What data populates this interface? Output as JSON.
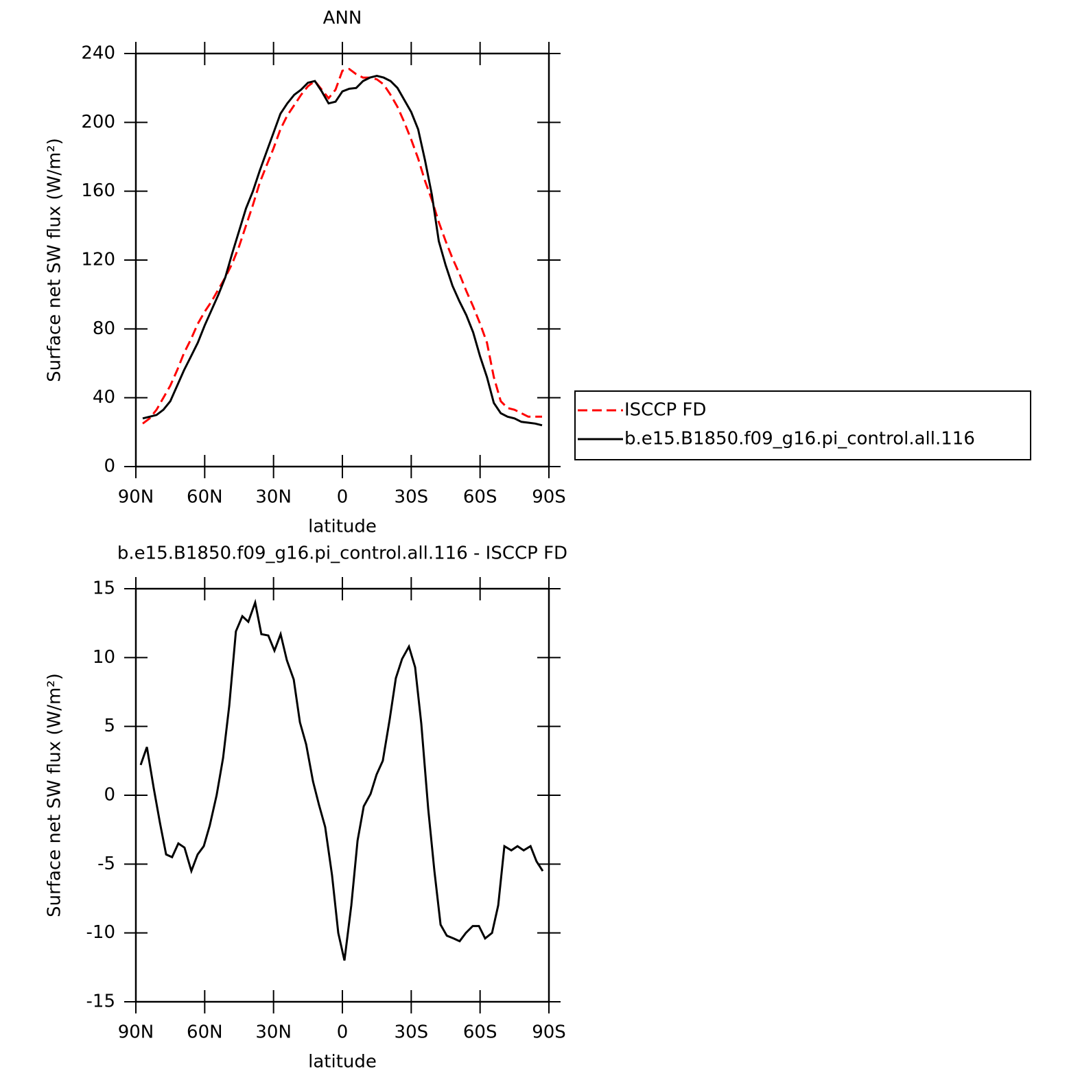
{
  "chart_data": [
    {
      "type": "line",
      "title": "ANN",
      "ylabel": "Surface net SW flux (W/m²)",
      "xlabel": "latitude",
      "x": [
        87,
        84,
        81,
        78,
        75,
        72,
        69,
        66,
        63,
        60,
        57,
        54,
        51,
        48,
        45,
        42,
        39,
        36,
        33,
        30,
        27,
        24,
        21,
        18,
        15,
        12,
        9,
        6,
        3,
        0,
        -3,
        -6,
        -9,
        -12,
        -15,
        -18,
        -21,
        -24,
        -27,
        -30,
        -33,
        -36,
        -39,
        -42,
        -45,
        -48,
        -51,
        -54,
        -57,
        -60,
        -63,
        -66,
        -69,
        -72,
        -75,
        -78,
        -81,
        -84,
        -87
      ],
      "series": [
        {
          "name": "ISCCP FD",
          "color": "#ff0000",
          "dash": true,
          "values": [
            25,
            28,
            33,
            40,
            47,
            56,
            66,
            74,
            83,
            90,
            96,
            103,
            110,
            118,
            128,
            140,
            152,
            165,
            175,
            185,
            196,
            204,
            210,
            216,
            221,
            224,
            219,
            214,
            219,
            230,
            231,
            228,
            226,
            226,
            225,
            222,
            216,
            209,
            200,
            190,
            179,
            166,
            155,
            142,
            131,
            121,
            112,
            102,
            93,
            83,
            72,
            52,
            38,
            34,
            33,
            31,
            29,
            29,
            29
          ]
        },
        {
          "name": "b.e15.B1850.f09_g16.pi_control.all.116",
          "color": "#000000",
          "dash": false,
          "values": [
            28,
            29,
            30,
            33,
            38,
            47,
            56,
            64,
            72,
            82,
            91,
            100,
            110,
            124,
            137,
            150,
            160,
            172,
            183,
            194,
            205,
            211,
            216,
            219,
            223,
            224,
            218,
            211,
            212,
            218,
            219.5,
            220,
            224,
            226,
            227,
            226,
            224,
            220,
            213,
            206,
            196,
            178,
            158,
            131,
            117,
            105,
            96,
            88,
            78,
            64,
            52,
            37,
            31,
            29,
            28,
            26,
            25.5,
            25,
            24
          ]
        }
      ],
      "xlim": [
        90,
        -90
      ],
      "xticks": [
        {
          "value": 90,
          "label": "90N"
        },
        {
          "value": 60,
          "label": "60N"
        },
        {
          "value": 30,
          "label": "30N"
        },
        0,
        {
          "value": -30,
          "label": "30S"
        },
        {
          "value": -60,
          "label": "60S"
        },
        {
          "value": -90,
          "label": "90S"
        }
      ],
      "ylim": [
        0,
        240
      ],
      "yticks": [
        0,
        40,
        80,
        120,
        160,
        200,
        240
      ],
      "legend": "right"
    },
    {
      "type": "line",
      "title": "b.e15.B1850.f09_g16.pi_control.all.116 - ISCCP FD",
      "ylabel": "Surface net SW flux (W/m²)",
      "xlabel": "latitude",
      "x": [
        87.9,
        85.2,
        82.2,
        79.5,
        76.8,
        74.2,
        71.5,
        68.8,
        65.8,
        63.1,
        60.4,
        57.8,
        54.8,
        52.0,
        49.3,
        46.4,
        43.6,
        41.0,
        38.0,
        35.3,
        32.3,
        29.6,
        26.9,
        24.2,
        21.2,
        18.5,
        15.8,
        12.8,
        10.2,
        7.5,
        4.5,
        1.8,
        -0.9,
        -3.9,
        -6.6,
        -9.3,
        -12.3,
        -14.9,
        -17.6,
        -20.6,
        -23.3,
        -26.0,
        -29.0,
        -31.7,
        -34.4,
        -37.4,
        -40.1,
        -42.8,
        -45.5,
        -48.5,
        -51.1,
        -53.8,
        -56.8,
        -59.5,
        -62.2,
        -65.2,
        -67.9,
        -70.6,
        -73.6,
        -76.3,
        -79.0,
        -82.0,
        -84.6,
        -87.3
      ],
      "series": [
        {
          "color": "#000000",
          "dash": false,
          "values": [
            2.2,
            3.5,
            0.5,
            -2,
            -4.3,
            -4.5,
            -3.5,
            -3.8,
            -5.5,
            -4.3,
            -3.7,
            -2.2,
            0,
            2.7,
            6.5,
            11.9,
            13,
            12.6,
            14,
            11.7,
            11.6,
            10.5,
            11.7,
            9.8,
            8.4,
            5.3,
            3.7,
            1,
            -0.7,
            -2.3,
            -5.8,
            -10,
            -12,
            -8,
            -3.3,
            -0.8,
            0.1,
            1.5,
            2.5,
            5.5,
            8.5,
            9.9,
            10.8,
            9.3,
            5.2,
            -1,
            -5.5,
            -9.4,
            -10.2,
            -10.4,
            -10.6,
            -10,
            -9.5,
            -9.5,
            -10.4,
            -10,
            -8,
            -3.7,
            -4,
            -3.7,
            -4,
            -3.7,
            -4.8,
            -5.5
          ]
        }
      ],
      "xlim": [
        90,
        -90
      ],
      "xticks": [
        {
          "value": 90,
          "label": "90N"
        },
        {
          "value": 60,
          "label": "60N"
        },
        {
          "value": 30,
          "label": "30N"
        },
        0,
        {
          "value": -30,
          "label": "30S"
        },
        {
          "value": -60,
          "label": "60S"
        },
        {
          "value": -90,
          "label": "90S"
        }
      ],
      "ylim": [
        -15,
        15
      ],
      "yticks": [
        -15,
        -10,
        -5,
        0,
        5,
        10,
        15
      ]
    }
  ]
}
